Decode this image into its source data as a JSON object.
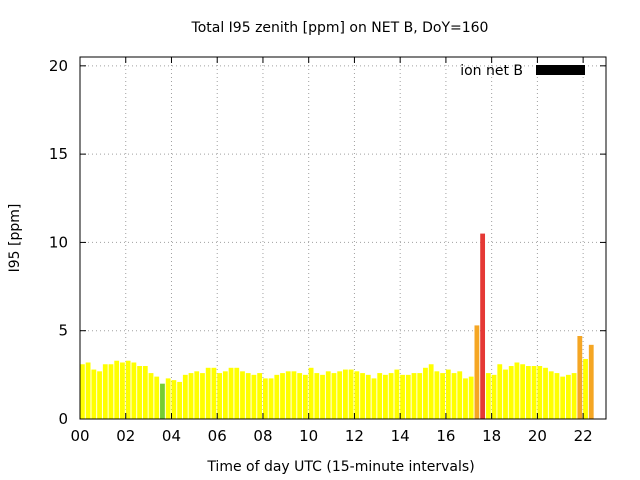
{
  "chart_data": {
    "type": "bar",
    "title": "Total I95 zenith [ppm] on NET B, DoY=160",
    "xlabel": "Time of day UTC (15-minute intervals)",
    "ylabel": "I95 [ppm]",
    "xlim": [
      0,
      23
    ],
    "ylim": [
      0,
      20.5
    ],
    "x_ticks": [
      {
        "value": 0,
        "label": "00"
      },
      {
        "value": 2,
        "label": "02"
      },
      {
        "value": 4,
        "label": "04"
      },
      {
        "value": 6,
        "label": "06"
      },
      {
        "value": 8,
        "label": "08"
      },
      {
        "value": 10,
        "label": "10"
      },
      {
        "value": 12,
        "label": "12"
      },
      {
        "value": 14,
        "label": "14"
      },
      {
        "value": 16,
        "label": "16"
      },
      {
        "value": 18,
        "label": "18"
      },
      {
        "value": 20,
        "label": "20"
      },
      {
        "value": 22,
        "label": "22"
      }
    ],
    "y_ticks": [
      {
        "value": 0,
        "label": "0"
      },
      {
        "value": 5,
        "label": "5"
      },
      {
        "value": 10,
        "label": "10"
      },
      {
        "value": 15,
        "label": "15"
      },
      {
        "value": 20,
        "label": "20"
      }
    ],
    "grid": true,
    "legend": {
      "label": "ion net B",
      "color": "#000000",
      "placement": "top-right"
    },
    "bar_width_hours": 0.21,
    "colors": {
      "yellow": "#ffff00",
      "green": "#77cc33",
      "orange": "#f5a623",
      "red": "#e53935"
    },
    "series": [
      {
        "values": [
          3.1,
          3.2,
          2.8,
          2.7,
          3.1,
          3.1,
          3.3,
          3.2,
          3.3,
          3.2,
          3.0,
          3.0,
          2.6,
          2.4,
          2.0,
          2.3,
          2.2,
          2.1,
          2.5,
          2.6,
          2.7,
          2.6,
          2.9,
          2.9,
          2.6,
          2.7,
          2.9,
          2.9,
          2.7,
          2.6,
          2.5,
          2.6,
          2.3,
          2.3,
          2.5,
          2.6,
          2.7,
          2.7,
          2.6,
          2.5,
          2.9,
          2.6,
          2.5,
          2.7,
          2.6,
          2.7,
          2.8,
          2.8,
          2.7,
          2.6,
          2.5,
          2.3,
          2.6,
          2.5,
          2.6,
          2.8,
          2.5,
          2.5,
          2.6,
          2.6,
          2.9,
          3.1,
          2.7,
          2.6,
          2.8,
          2.6,
          2.7,
          2.3,
          2.4,
          5.3,
          10.5,
          2.6,
          2.5,
          3.1,
          2.8,
          3.0,
          3.2,
          3.1,
          3.0,
          3.0,
          3.0,
          2.9,
          2.7,
          2.6,
          2.4,
          2.5,
          2.6,
          4.7,
          3.4,
          4.2
        ],
        "levels": [
          "yellow",
          "yellow",
          "yellow",
          "yellow",
          "yellow",
          "yellow",
          "yellow",
          "yellow",
          "yellow",
          "yellow",
          "yellow",
          "yellow",
          "yellow",
          "yellow",
          "green",
          "yellow",
          "yellow",
          "yellow",
          "yellow",
          "yellow",
          "yellow",
          "yellow",
          "yellow",
          "yellow",
          "yellow",
          "yellow",
          "yellow",
          "yellow",
          "yellow",
          "yellow",
          "yellow",
          "yellow",
          "yellow",
          "yellow",
          "yellow",
          "yellow",
          "yellow",
          "yellow",
          "yellow",
          "yellow",
          "yellow",
          "yellow",
          "yellow",
          "yellow",
          "yellow",
          "yellow",
          "yellow",
          "yellow",
          "yellow",
          "yellow",
          "yellow",
          "yellow",
          "yellow",
          "yellow",
          "yellow",
          "yellow",
          "yellow",
          "yellow",
          "yellow",
          "yellow",
          "yellow",
          "yellow",
          "yellow",
          "yellow",
          "yellow",
          "yellow",
          "yellow",
          "yellow",
          "yellow",
          "orange",
          "red",
          "yellow",
          "yellow",
          "yellow",
          "yellow",
          "yellow",
          "yellow",
          "yellow",
          "yellow",
          "yellow",
          "yellow",
          "yellow",
          "yellow",
          "yellow",
          "yellow",
          "yellow",
          "yellow",
          "orange",
          "yellow",
          "orange"
        ]
      }
    ]
  }
}
